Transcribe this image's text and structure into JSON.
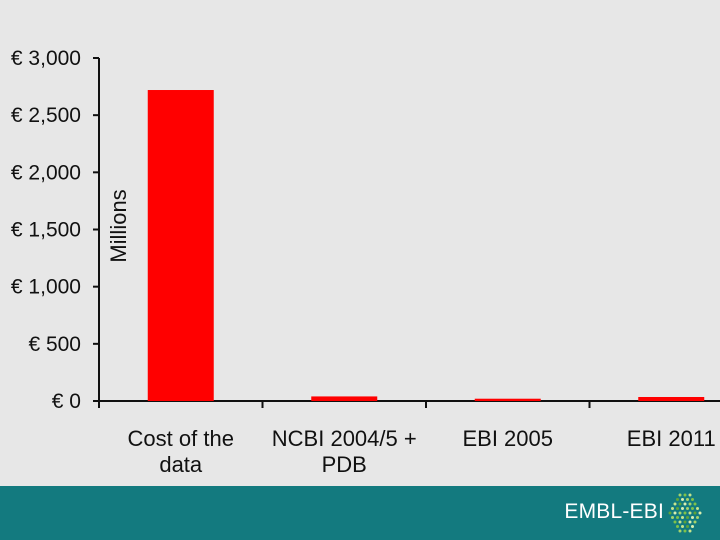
{
  "chart_data": {
    "type": "bar",
    "categories": [
      [
        "Cost of the",
        "data"
      ],
      [
        "NCBI 2004/5 +",
        "PDB"
      ],
      [
        "EBI 2005"
      ],
      [
        "EBI 2011"
      ]
    ],
    "values": [
      2720,
      40,
      20,
      35
    ],
    "ylabel": "Millions",
    "ylim": [
      0,
      3000
    ],
    "yticks": [
      0,
      500,
      1000,
      1500,
      2000,
      2500,
      3000
    ],
    "ytick_labels": [
      "€ 0",
      "€ 500",
      "€ 1,000",
      "€ 1,500",
      "€ 2,000",
      "€ 2,500",
      "€ 3,000"
    ],
    "bar_color": "#ff0000",
    "grid": false,
    "legend": "none"
  },
  "footer": {
    "brand": "EMBL-EBI",
    "background": "#137a7f",
    "logo_icon": "embl-ebi-dotted-hexagon-logo"
  }
}
